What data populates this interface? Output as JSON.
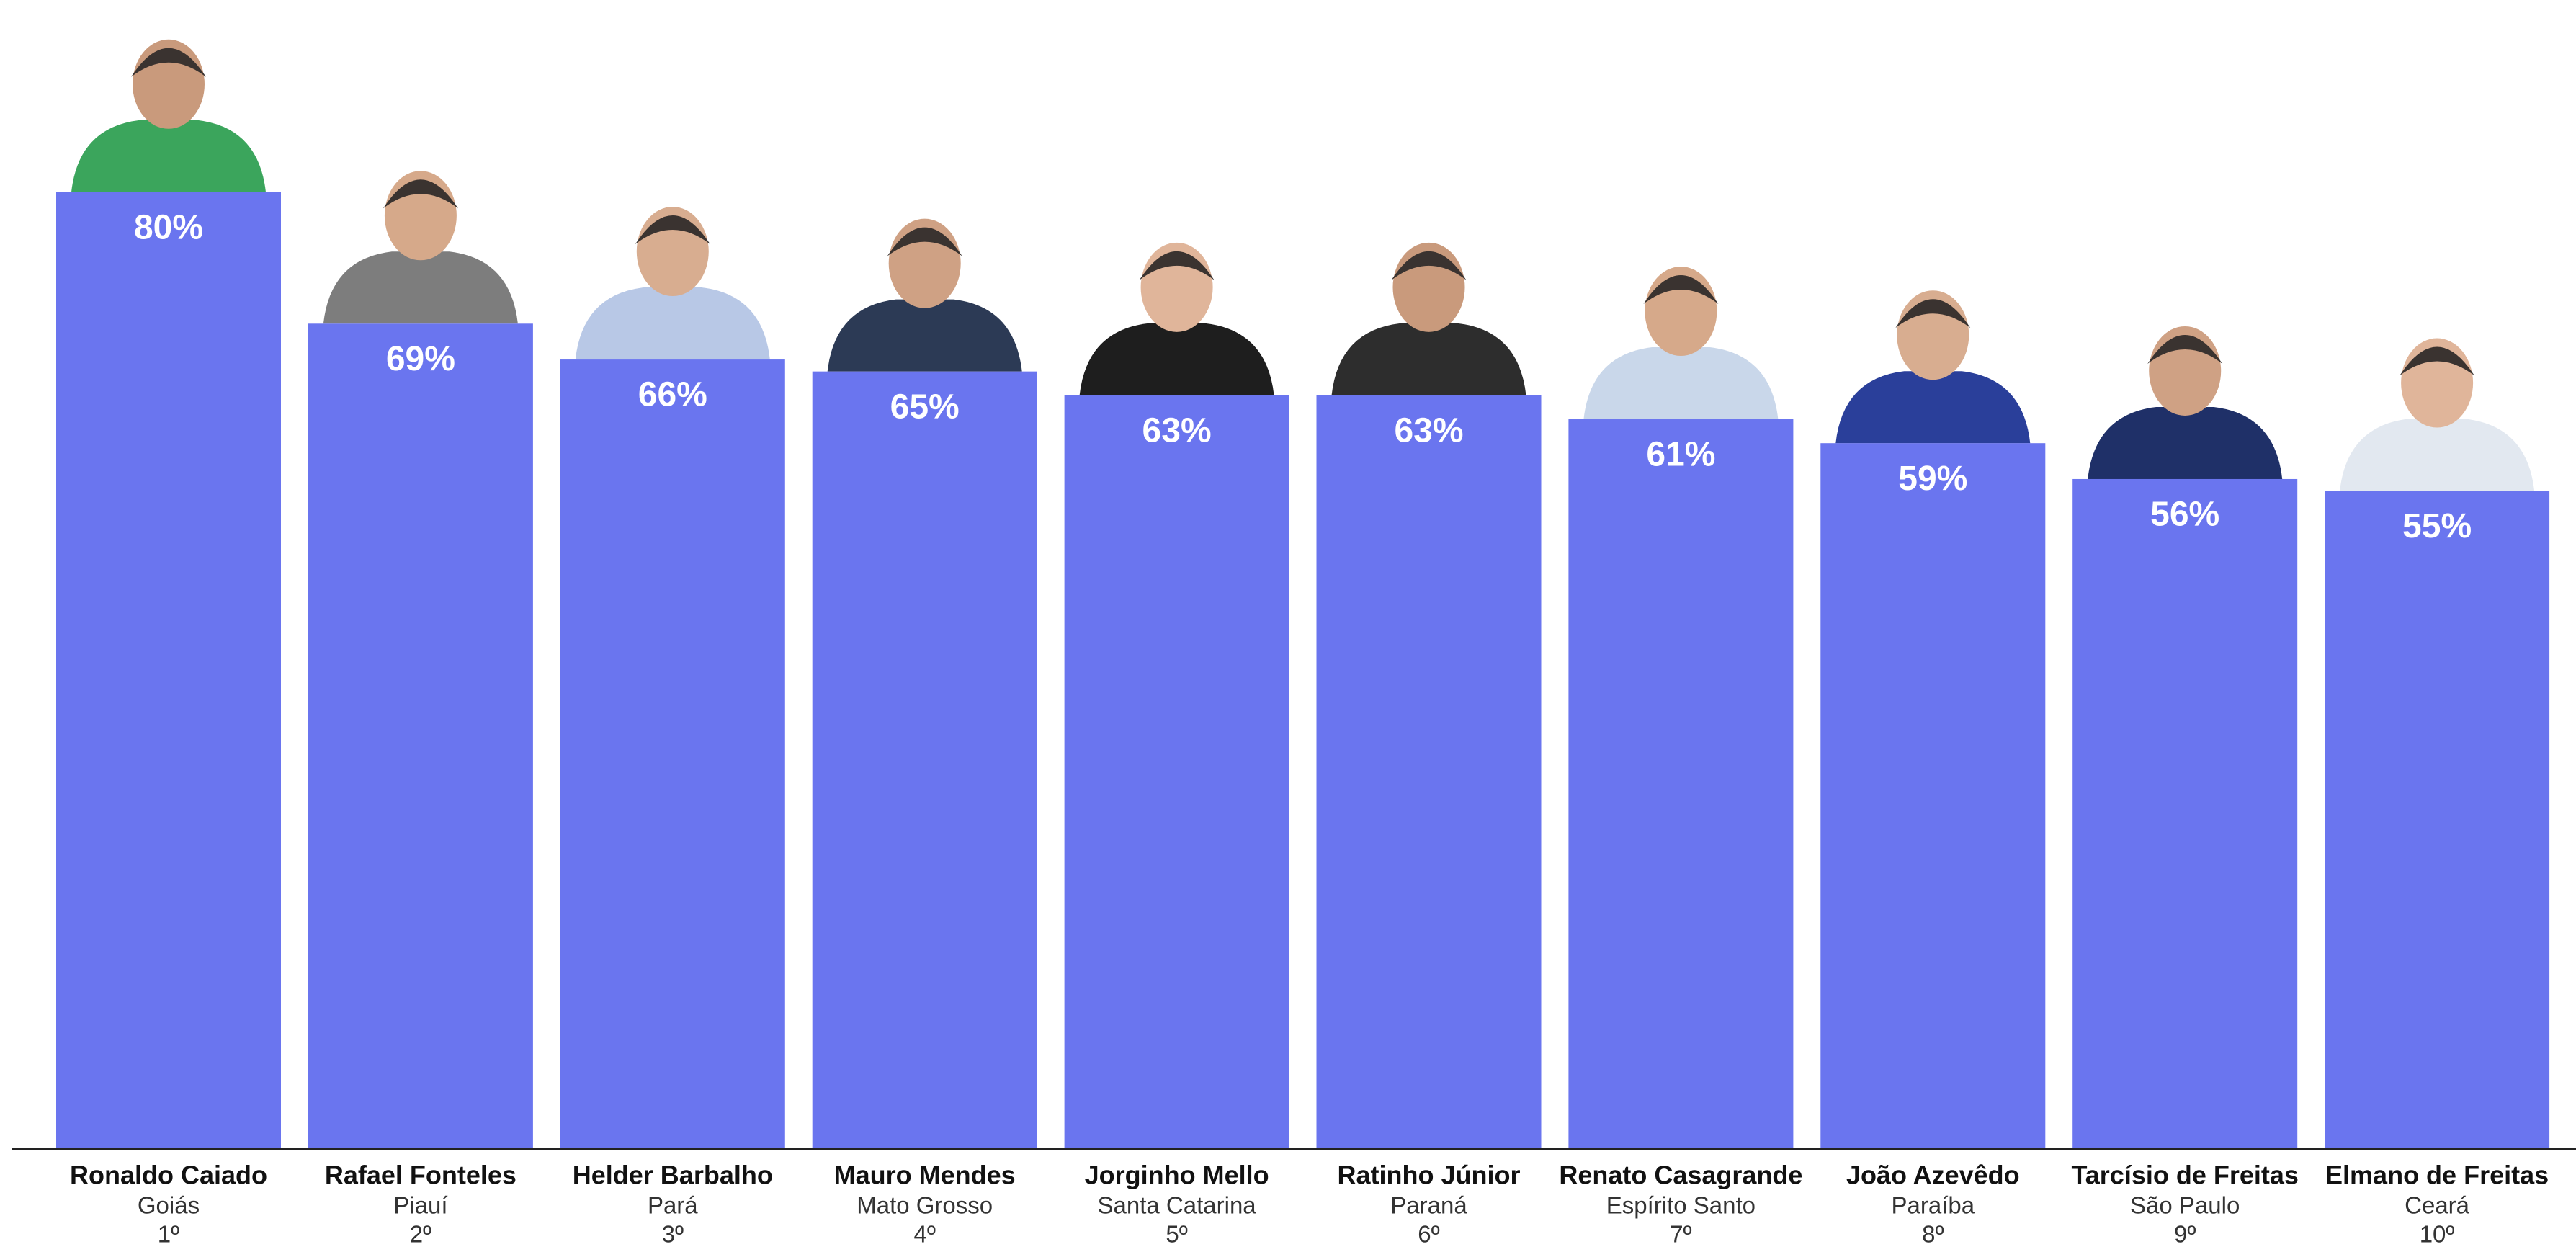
{
  "chart_data": {
    "type": "bar",
    "categories": [
      "Ronaldo Caiado",
      "Rafael Fonteles",
      "Helder Barbalho",
      "Mauro Mendes",
      "Jorginho Mello",
      "Ratinho Júnior",
      "Renato Casagrande",
      "João Azevêdo",
      "Tarcísio de Freitas",
      "Elmano de Freitas"
    ],
    "states": [
      "Goiás",
      "Piauí",
      "Pará",
      "Mato Grosso",
      "Santa Catarina",
      "Paraná",
      "Espírito Santo",
      "Paraíba",
      "São Paulo",
      "Ceará"
    ],
    "ranks": [
      "1º",
      "2º",
      "3º",
      "4º",
      "5º",
      "6º",
      "7º",
      "8º",
      "9º",
      "10º"
    ],
    "values": [
      80,
      69,
      66,
      65,
      63,
      63,
      61,
      59,
      56,
      55
    ],
    "value_labels": [
      "80%",
      "69%",
      "66%",
      "65%",
      "63%",
      "63%",
      "61%",
      "59%",
      "56%",
      "55%"
    ],
    "color": "#6a75ef"
  }
}
